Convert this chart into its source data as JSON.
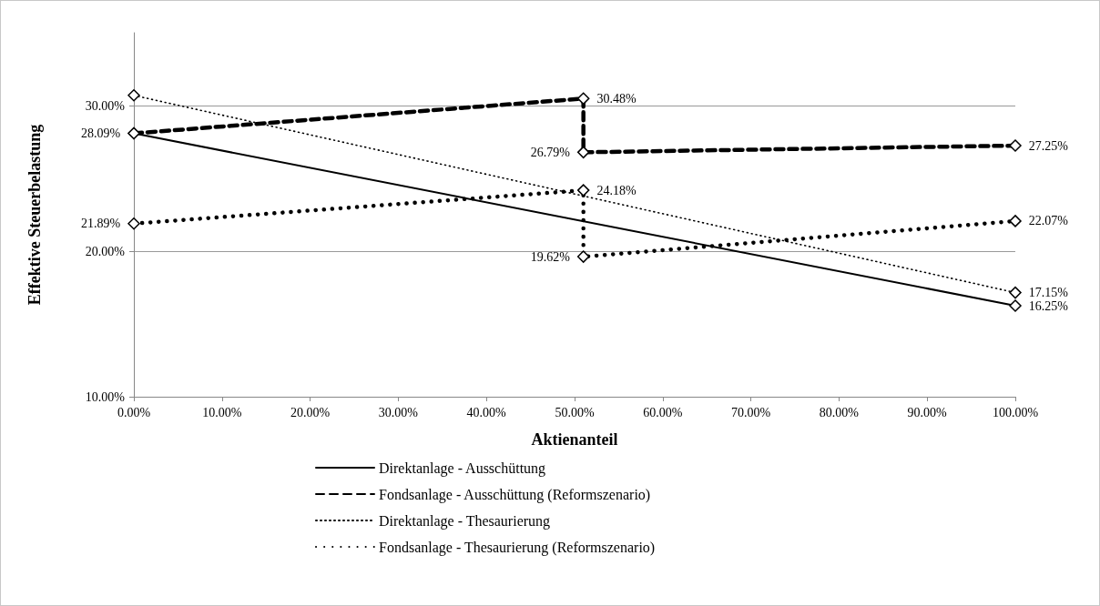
{
  "chart_data": {
    "type": "line",
    "xlabel": "Aktienanteil",
    "ylabel": "Effektive Steuerbelastung",
    "xlim": [
      0,
      100
    ],
    "xticks": [
      {
        "value": 0,
        "label": "0.00%"
      },
      {
        "value": 10,
        "label": "10.00%"
      },
      {
        "value": 20,
        "label": "20.00%"
      },
      {
        "value": 30,
        "label": "30.00%"
      },
      {
        "value": 40,
        "label": "40.00%"
      },
      {
        "value": 50,
        "label": "50.00%"
      },
      {
        "value": 60,
        "label": "60.00%"
      },
      {
        "value": 70,
        "label": "70.00%"
      },
      {
        "value": 80,
        "label": "80.00%"
      },
      {
        "value": 90,
        "label": "90.00%"
      },
      {
        "value": 100,
        "label": "100.00%"
      }
    ],
    "ylim": [
      10,
      35
    ],
    "yticks": [
      {
        "value": 10,
        "label": "10.00%"
      },
      {
        "value": 20,
        "label": "20.00%"
      },
      {
        "value": 30,
        "label": "30.00%"
      }
    ],
    "grid": "y",
    "legend": "bottom",
    "marker": "diamond",
    "series": [
      {
        "name": "Direktanlage - Ausschüttung",
        "color": "#000000",
        "line_style": "solid",
        "x": [
          0,
          100
        ],
        "values": [
          28.09,
          16.25
        ],
        "value_labels": [
          null,
          "16.25%"
        ]
      },
      {
        "name": "Fondsanlage - Ausschüttung (Reformszenario)",
        "color": "#000000",
        "line_style": "dashed",
        "x": [
          0,
          51,
          51,
          100
        ],
        "values": [
          28.09,
          30.48,
          26.79,
          27.25
        ],
        "value_labels": [
          "28.09%",
          "30.48%",
          "26.79%",
          "27.25%"
        ]
      },
      {
        "name": "Direktanlage - Thesaurierung",
        "color": "#000000",
        "line_style": "dotted",
        "x": [
          0,
          100
        ],
        "values": [
          30.7,
          17.15
        ],
        "value_labels": [
          null,
          "17.15%"
        ]
      },
      {
        "name": "Fondsanlage - Thesaurierung (Reformszenario)",
        "color": "#000000",
        "line_style": "dotted",
        "x": [
          0,
          51,
          51,
          100
        ],
        "values": [
          21.89,
          24.18,
          19.62,
          22.07
        ],
        "value_labels": [
          "21.89%",
          "24.18%",
          "19.62%",
          "22.07%"
        ]
      }
    ]
  }
}
